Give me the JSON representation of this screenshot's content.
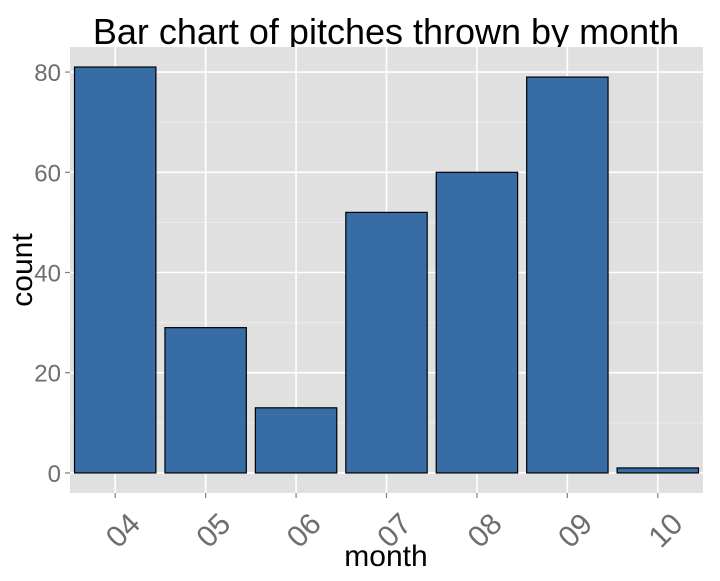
{
  "chart_data": {
    "type": "bar",
    "title": "Bar chart of pitches thrown by month",
    "xlabel": "month",
    "ylabel": "count",
    "categories": [
      "04",
      "05",
      "06",
      "07",
      "08",
      "09",
      "10"
    ],
    "values": [
      81,
      29,
      13,
      52,
      60,
      79,
      1
    ],
    "ylim": [
      -4,
      85
    ],
    "yticks": [
      0,
      20,
      40,
      60,
      80
    ],
    "grid": true,
    "legend": "none",
    "colors": {
      "bar_fill": "#386ca5",
      "bar_stroke": "#000000",
      "panel_bg": "#e0e0e0",
      "grid_major": "#ffffff",
      "grid_minor": "#ebebeb",
      "tick_label": "#6e6e6e",
      "title": "#000000"
    }
  }
}
